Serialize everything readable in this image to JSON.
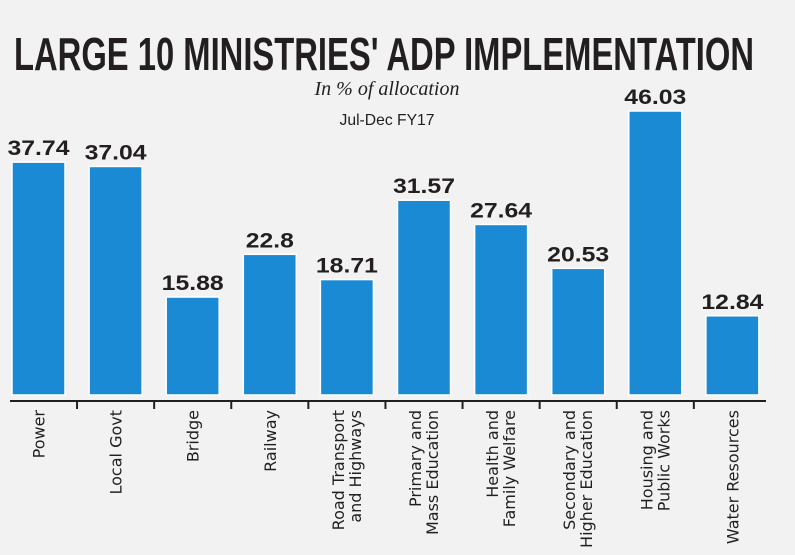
{
  "chart_data": {
    "type": "bar",
    "title": "LARGE 10 MINISTRIES' ADP IMPLEMENTATION",
    "subtitle": "In % of allocation",
    "period": "Jul-Dec FY17",
    "categories": [
      [
        "Power"
      ],
      [
        "Local Govt"
      ],
      [
        "Bridge"
      ],
      [
        "Railway"
      ],
      [
        "Road Transport",
        "and Highways"
      ],
      [
        "Primary and",
        "Mass Education"
      ],
      [
        "Health and",
        "Family Welfare"
      ],
      [
        "Secondary and",
        "Higher Education"
      ],
      [
        "Housing and",
        "Public Works"
      ],
      [
        "Water Resources"
      ]
    ],
    "values": [
      37.74,
      37.04,
      15.88,
      22.8,
      18.71,
      31.57,
      27.64,
      20.53,
      46.03,
      12.84
    ],
    "value_labels": [
      "37.74",
      "37.04",
      "15.88",
      "22.8",
      "18.71",
      "31.57",
      "27.64",
      "20.53",
      "46.03",
      "12.84"
    ],
    "ylim": [
      0,
      50
    ],
    "grid": false,
    "legend": "none",
    "bar_color": "#1a8ad4",
    "background": "#f2f2f2"
  }
}
